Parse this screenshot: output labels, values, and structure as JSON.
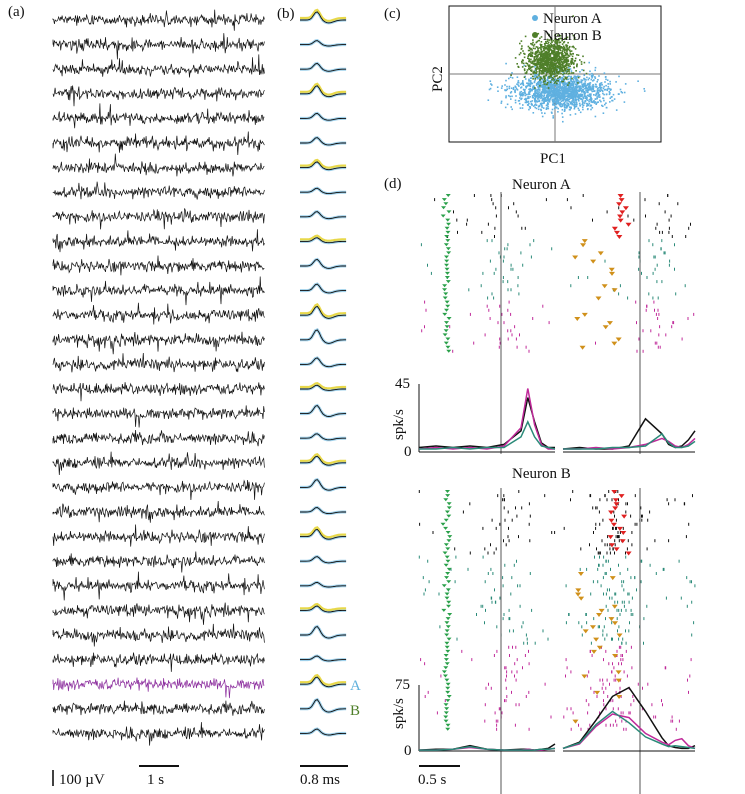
{
  "panels": {
    "a": {
      "label": "(a)",
      "n_channels": 30,
      "highlight_channel": 27,
      "highlight_color": "#8a2a9c",
      "trace_color": "#111111",
      "scale_amp": "100 µV",
      "scale_time": "1 s"
    },
    "b": {
      "label": "(b)",
      "waveform_color": "#111111",
      "mean_color": "#5fb0dc",
      "alt_color": "#e8d84a",
      "label_A": "A",
      "label_B": "B",
      "scale_time": "0.8 ms"
    },
    "c": {
      "label": "(c)",
      "xlabel": "PC1",
      "ylabel": "PC2"
    },
    "d": {
      "label": "(d)",
      "title_A": "Neuron A",
      "title_B": "Neuron B",
      "ylabel": "spk/s",
      "scale_time": "0.5 s"
    }
  },
  "colors": {
    "neuronA": "#5fb0e0",
    "neuronB": "#4f7f2a",
    "black": "#111111",
    "teal": "#2a8a78",
    "magenta": "#c02a9a",
    "green_marker": "#2aa04a",
    "orange_marker": "#d0901a",
    "red_marker": "#e02020"
  },
  "chart_data": [
    {
      "type": "scatter",
      "title": "",
      "xlabel": "PC1",
      "ylabel": "PC2",
      "series": [
        {
          "name": "Neuron A",
          "color": "#5fb0e0",
          "center": [
            0.05,
            -0.25
          ],
          "spread": [
            0.55,
            0.13
          ]
        },
        {
          "name": "Neuron B",
          "color": "#4f7f2a",
          "center": [
            -0.05,
            0.22
          ],
          "spread": [
            0.28,
            0.15
          ]
        }
      ]
    },
    {
      "type": "line",
      "title": "Neuron A",
      "ylabel": "spk/s",
      "ylim": [
        0,
        45
      ],
      "yticks": [
        0,
        45
      ],
      "x": [
        0,
        0.25,
        0.5,
        0.75,
        1.0,
        1.25,
        1.5,
        1.6,
        1.7,
        1.8,
        1.9,
        2.0
      ],
      "series": [
        {
          "color": "#111111",
          "segment1": [
            3,
            4,
            3,
            4,
            3,
            5,
            14,
            36,
            20,
            6,
            3,
            3
          ],
          "segment2": [
            2,
            3,
            2,
            2,
            4,
            22,
            12,
            5,
            3,
            4,
            8,
            14
          ]
        },
        {
          "color": "#c02a9a",
          "segment1": [
            2,
            3,
            2,
            3,
            2,
            4,
            16,
            42,
            18,
            5,
            2,
            2
          ],
          "segment2": [
            2,
            2,
            3,
            2,
            3,
            5,
            9,
            7,
            4,
            3,
            5,
            9
          ]
        },
        {
          "color": "#2a8a78",
          "segment1": [
            2,
            2,
            3,
            2,
            3,
            3,
            10,
            20,
            10,
            4,
            3,
            2
          ],
          "segment2": [
            2,
            2,
            2,
            3,
            3,
            4,
            12,
            6,
            3,
            3,
            4,
            7
          ]
        }
      ]
    },
    {
      "type": "line",
      "title": "Neuron B",
      "ylabel": "spk/s",
      "ylim": [
        0,
        75
      ],
      "yticks": [
        0,
        75
      ],
      "x": [
        0,
        0.25,
        0.5,
        0.75,
        1.0,
        1.25,
        1.5,
        1.6,
        1.7,
        1.8,
        1.9,
        2.0
      ],
      "series": [
        {
          "color": "#111111",
          "segment1": [
            1,
            2,
            2,
            6,
            2,
            1,
            2,
            2,
            1,
            2,
            3,
            8
          ],
          "segment2": [
            3,
            10,
            35,
            62,
            72,
            45,
            15,
            6,
            4,
            3,
            3,
            6
          ]
        },
        {
          "color": "#c02a9a",
          "segment1": [
            1,
            1,
            2,
            4,
            2,
            1,
            1,
            2,
            1,
            1,
            2,
            3
          ],
          "segment2": [
            3,
            8,
            28,
            42,
            38,
            20,
            10,
            7,
            12,
            14,
            6,
            3
          ]
        },
        {
          "color": "#2a8a78",
          "segment1": [
            1,
            1,
            2,
            5,
            2,
            1,
            1,
            1,
            1,
            2,
            2,
            3
          ],
          "segment2": [
            3,
            9,
            30,
            45,
            32,
            16,
            8,
            5,
            6,
            5,
            4,
            3
          ]
        }
      ]
    }
  ]
}
